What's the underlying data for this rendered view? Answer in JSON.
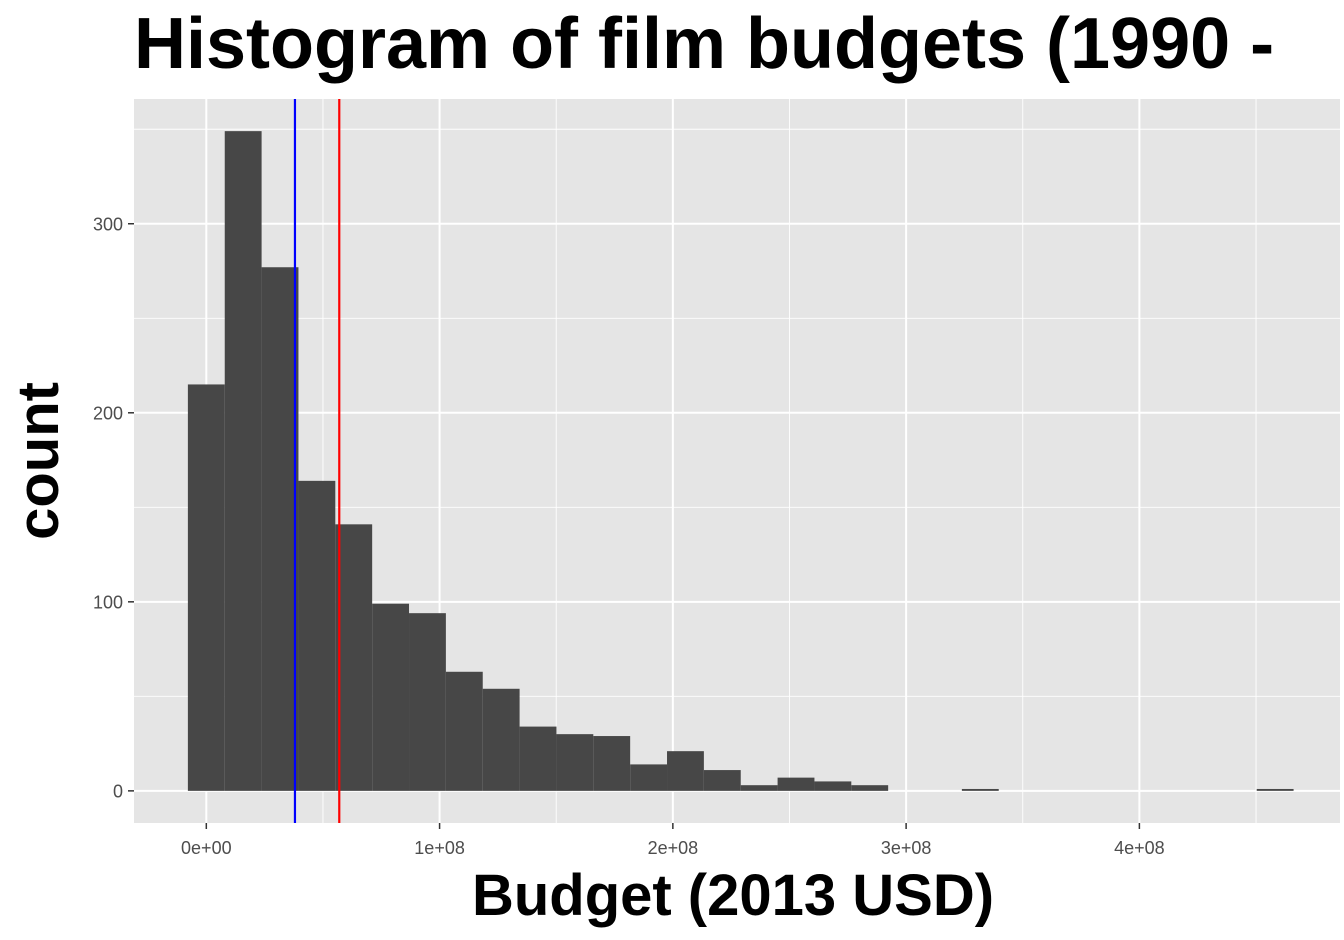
{
  "chart_data": {
    "type": "bar",
    "title": "Histogram of film budgets (1990 -",
    "xlabel": "Budget (2013 USD)",
    "ylabel": "count",
    "bin_width": 15800000,
    "bins": [
      {
        "x0": -7900000,
        "x1": 7900000,
        "count": 215
      },
      {
        "x0": 7900000,
        "x1": 23700000,
        "count": 349
      },
      {
        "x0": 23700000,
        "x1": 39500000,
        "count": 277
      },
      {
        "x0": 39500000,
        "x1": 55300000,
        "count": 164
      },
      {
        "x0": 55300000,
        "x1": 71100000,
        "count": 141
      },
      {
        "x0": 71100000,
        "x1": 86900000,
        "count": 99
      },
      {
        "x0": 86900000,
        "x1": 102700000,
        "count": 94
      },
      {
        "x0": 102700000,
        "x1": 118500000,
        "count": 63
      },
      {
        "x0": 118500000,
        "x1": 134300000,
        "count": 54
      },
      {
        "x0": 134300000,
        "x1": 150100000,
        "count": 34
      },
      {
        "x0": 150100000,
        "x1": 165900000,
        "count": 30
      },
      {
        "x0": 165900000,
        "x1": 181700000,
        "count": 29
      },
      {
        "x0": 181700000,
        "x1": 197500000,
        "count": 14
      },
      {
        "x0": 197500000,
        "x1": 213300000,
        "count": 21
      },
      {
        "x0": 213300000,
        "x1": 229100000,
        "count": 11
      },
      {
        "x0": 229100000,
        "x1": 244900000,
        "count": 3
      },
      {
        "x0": 244900000,
        "x1": 260700000,
        "count": 7
      },
      {
        "x0": 260700000,
        "x1": 276500000,
        "count": 5
      },
      {
        "x0": 276500000,
        "x1": 292300000,
        "count": 3
      },
      {
        "x0": 292300000,
        "x1": 308100000,
        "count": 0
      },
      {
        "x0": 308100000,
        "x1": 323900000,
        "count": 0
      },
      {
        "x0": 323900000,
        "x1": 339700000,
        "count": 1
      },
      {
        "x0": 339700000,
        "x1": 355500000,
        "count": 0
      },
      {
        "x0": 355500000,
        "x1": 371300000,
        "count": 0
      },
      {
        "x0": 371300000,
        "x1": 387100000,
        "count": 0
      },
      {
        "x0": 387100000,
        "x1": 402900000,
        "count": 0
      },
      {
        "x0": 402900000,
        "x1": 418700000,
        "count": 0
      },
      {
        "x0": 418700000,
        "x1": 434500000,
        "count": 0
      },
      {
        "x0": 434500000,
        "x1": 450300000,
        "count": 0
      },
      {
        "x0": 450300000,
        "x1": 466100000,
        "count": 1
      }
    ],
    "xlim": [
      -31000000,
      486000000
    ],
    "ylim": [
      -17,
      366
    ],
    "x_ticks": [
      {
        "value": 0,
        "label": "0e+00"
      },
      {
        "value": 100000000,
        "label": "1e+08"
      },
      {
        "value": 200000000,
        "label": "2e+08"
      },
      {
        "value": 300000000,
        "label": "3e+08"
      },
      {
        "value": 400000000,
        "label": "4e+08"
      }
    ],
    "x_minor_ticks": [
      50000000,
      150000000,
      250000000,
      350000000,
      450000000
    ],
    "y_ticks": [
      {
        "value": 0,
        "label": "0"
      },
      {
        "value": 100,
        "label": "100"
      },
      {
        "value": 200,
        "label": "200"
      },
      {
        "value": 300,
        "label": "300"
      }
    ],
    "y_minor_ticks": [
      50,
      150,
      250,
      350
    ],
    "reference_lines": [
      {
        "value": 38000000,
        "color": "#0000ff"
      },
      {
        "value": 57000000,
        "color": "#ff0000"
      }
    ],
    "grid": true,
    "legend": "none",
    "colors": {
      "bar": "#474747",
      "panel_background": "#e5e5e5",
      "grid_line": "#ffffff",
      "tick_label": "#4d4d4d",
      "tick_mark": "#333333"
    }
  }
}
